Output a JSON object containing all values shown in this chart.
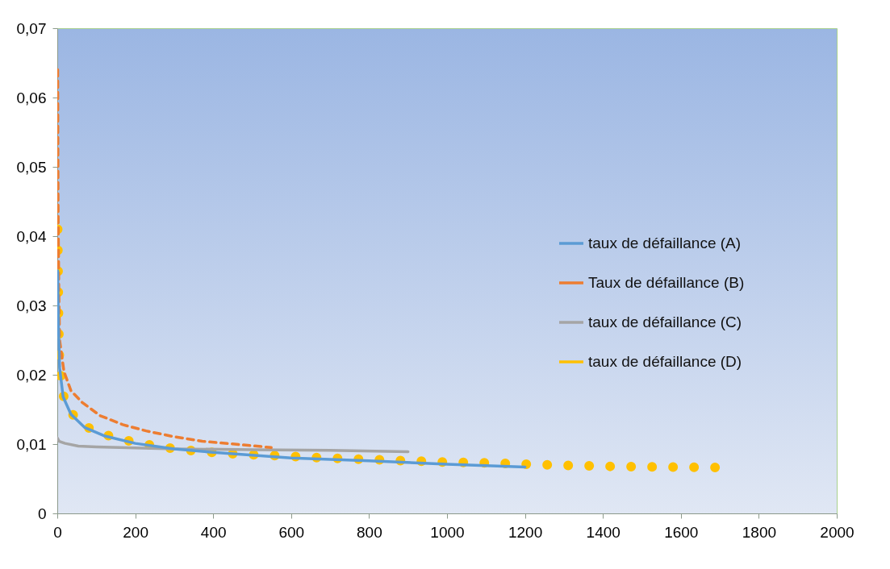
{
  "chart_data": {
    "type": "line",
    "xlim": [
      0,
      2000
    ],
    "xticks": [
      0,
      200,
      400,
      600,
      800,
      1000,
      1200,
      1400,
      1600,
      1800,
      2000
    ],
    "ylim": [
      0,
      0.07
    ],
    "yticks": [
      {
        "value": 0,
        "label": "0"
      },
      {
        "value": 0.01,
        "label": "0,01"
      },
      {
        "value": 0.02,
        "label": "0,02"
      },
      {
        "value": 0.03,
        "label": "0,03"
      },
      {
        "value": 0.04,
        "label": "0,04"
      },
      {
        "value": 0.05,
        "label": "0,05"
      },
      {
        "value": 0.06,
        "label": "0,06"
      },
      {
        "value": 0.07,
        "label": "0,07"
      }
    ],
    "grid": false,
    "legend": "right",
    "series": [
      {
        "name": " taux de défaillance (A)",
        "color": "#5b9bd5",
        "line_style": "solid",
        "x": [
          1,
          3,
          6,
          15,
          35,
          70,
          120,
          200,
          300,
          400,
          500,
          600,
          800,
          1000,
          1200
        ],
        "values": [
          0.035,
          0.027,
          0.021,
          0.0168,
          0.0143,
          0.0124,
          0.0112,
          0.0101,
          0.0093,
          0.0088,
          0.0084,
          0.008,
          0.0076,
          0.0071,
          0.0067
        ]
      },
      {
        "name": "Taux de défaillance (B)",
        "color": "#ed7d31",
        "line_style": "dashed",
        "x": [
          1,
          2,
          4,
          6,
          17,
          35,
          64,
          110,
          168,
          228,
          296,
          372,
          455,
          549
        ],
        "values": [
          0.064,
          0.045,
          0.032,
          0.025,
          0.0205,
          0.0177,
          0.016,
          0.0141,
          0.0128,
          0.0119,
          0.0111,
          0.0104,
          0.01,
          0.0095
        ]
      },
      {
        "name": "taux de défaillance (C)",
        "color": "#a5a5a5",
        "line_style": "solid",
        "x": [
          0,
          5,
          20,
          54,
          100,
          300,
          500,
          700,
          900
        ],
        "values": [
          0.0109,
          0.0104,
          0.0101,
          0.0097,
          0.0096,
          0.0093,
          0.0092,
          0.0091,
          0.0089
        ]
      },
      {
        "name": "taux de défaillance (D)",
        "color": "#ffc000",
        "line_style": "dotted",
        "x": [
          1,
          2,
          3,
          5,
          12,
          31,
          66,
          114,
          165,
          215,
          267,
          319,
          371,
          422,
          476,
          580,
          683,
          789,
          892,
          996,
          1100,
          1259,
          1400,
          1550,
          1715
        ],
        "values": [
          0.041,
          0.035,
          0.029,
          0.023,
          0.0175,
          0.0148,
          0.0127,
          0.0115,
          0.0107,
          0.0101,
          0.0096,
          0.0092,
          0.0089,
          0.0087,
          0.0085,
          0.0083,
          0.008,
          0.0078,
          0.0076,
          0.0074,
          0.0073,
          0.007,
          0.0068,
          0.0067,
          0.0066
        ]
      }
    ]
  }
}
